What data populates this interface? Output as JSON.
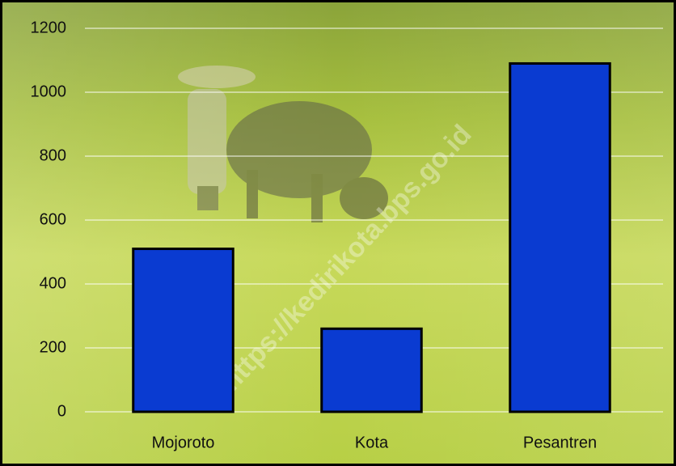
{
  "chart_data": {
    "type": "bar",
    "categories": [
      "Mojoroto",
      "Kota",
      "Pesantren"
    ],
    "values": [
      510,
      260,
      1090
    ],
    "color": "#0a3bd1",
    "ylim": [
      0,
      1200
    ],
    "yticks": [
      0,
      200,
      400,
      600,
      800,
      1000,
      1200
    ],
    "grid": true,
    "watermark": "https://kedirikota.bps.go.id"
  }
}
